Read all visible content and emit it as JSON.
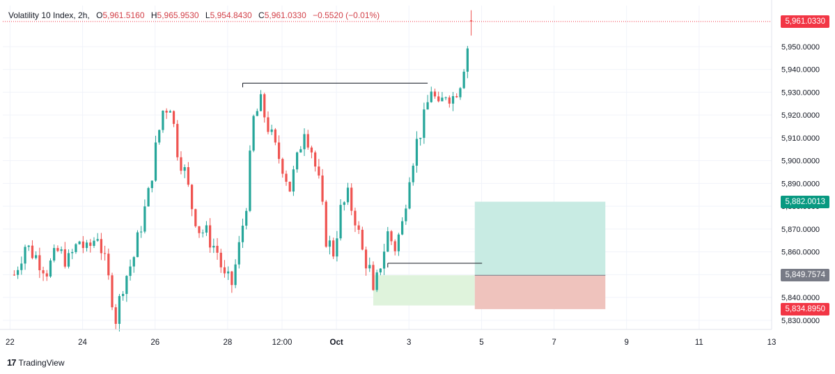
{
  "legend": {
    "symbol": "Volatility 10 Index, 2h,",
    "open_label": "O",
    "open": "5,961.5160",
    "high_label": "H",
    "high": "5,965.9530",
    "low_label": "L",
    "low": "5,954.8430",
    "close_label": "C",
    "close": "5,961.0330",
    "change": "−0.5520 (−0.01%)"
  },
  "brand": {
    "logo": "17",
    "name": "TradingView"
  },
  "price_tags": {
    "last": "5,961.0330",
    "take_profit": "5,882.0013",
    "entry": "5,849.7574",
    "stop_loss": "5,834.8950"
  },
  "colors": {
    "up": "#26a69a",
    "down": "#ef5350",
    "last_tag": "#f23645",
    "tp_tag": "#089981",
    "entry_tag": "#787b86",
    "sl_tag": "#f23645",
    "profit_zone": "#c8ebe3",
    "loss_zone": "#efc3bd",
    "prior_zone": "#dff3dc"
  },
  "chart_data": {
    "type": "candlestick",
    "title": "Volatility 10 Index, 2h",
    "ylim": [
      5826,
      5968
    ],
    "y_ticks": [
      5830,
      5840,
      5850,
      5860,
      5870,
      5880,
      5890,
      5900,
      5910,
      5920,
      5930,
      5940,
      5950
    ],
    "y_tick_labels": [
      "5,830.0000",
      "5,840.0000",
      "5,850.0000",
      "5,860.0000",
      "5,870.0000",
      "5,880.0000",
      "5,890.0000",
      "5,900.0000",
      "5,910.0000",
      "5,920.0000",
      "5,930.0000",
      "5,940.0000",
      "5,950.0000"
    ],
    "x_unit": "2h bar index",
    "x_range": [
      -2,
      210
    ],
    "x_ticks": [
      {
        "label": "22",
        "bar": 0
      },
      {
        "label": "24",
        "bar": 20
      },
      {
        "label": "26",
        "bar": 40
      },
      {
        "label": "28",
        "bar": 60
      },
      {
        "label": "12:00",
        "bar": 75
      },
      {
        "label": "Oct",
        "bar": 90
      },
      {
        "label": "3",
        "bar": 110
      },
      {
        "label": "5",
        "bar": 130
      },
      {
        "label": "7",
        "bar": 150
      },
      {
        "label": "9",
        "bar": 170
      },
      {
        "label": "11",
        "bar": 190
      },
      {
        "label": "13",
        "bar": 210
      }
    ],
    "close_path": [
      [
        0,
        5850
      ],
      [
        3,
        5863
      ],
      [
        6,
        5858
      ],
      [
        9,
        5852
      ],
      [
        12,
        5860
      ],
      [
        15,
        5856
      ],
      [
        18,
        5865
      ],
      [
        20,
        5860
      ],
      [
        23,
        5868
      ],
      [
        25,
        5855
      ],
      [
        27,
        5840
      ],
      [
        28,
        5831
      ],
      [
        30,
        5846
      ],
      [
        33,
        5858
      ],
      [
        35,
        5872
      ],
      [
        37,
        5885
      ],
      [
        39,
        5905
      ],
      [
        41,
        5922
      ],
      [
        43,
        5925
      ],
      [
        45,
        5905
      ],
      [
        47,
        5895
      ],
      [
        49,
        5880
      ],
      [
        51,
        5870
      ],
      [
        53,
        5868
      ],
      [
        56,
        5860
      ],
      [
        58,
        5848
      ],
      [
        60,
        5846
      ],
      [
        62,
        5862
      ],
      [
        64,
        5882
      ],
      [
        65,
        5900
      ],
      [
        66,
        5918
      ],
      [
        68,
        5925
      ],
      [
        70,
        5915
      ],
      [
        72,
        5905
      ],
      [
        74,
        5898
      ],
      [
        76,
        5888
      ],
      [
        78,
        5900
      ],
      [
        80,
        5915
      ],
      [
        82,
        5905
      ],
      [
        84,
        5890
      ],
      [
        86,
        5866
      ],
      [
        88,
        5860
      ],
      [
        90,
        5878
      ],
      [
        92,
        5884
      ],
      [
        94,
        5875
      ],
      [
        96,
        5860
      ],
      [
        98,
        5852
      ],
      [
        99,
        5840
      ],
      [
        101,
        5855
      ],
      [
        103,
        5868
      ],
      [
        105,
        5862
      ],
      [
        107,
        5872
      ],
      [
        109,
        5895
      ],
      [
        111,
        5908
      ],
      [
        113,
        5918
      ],
      [
        115,
        5932
      ],
      [
        117,
        5922
      ],
      [
        119,
        5930
      ],
      [
        121,
        5928
      ],
      [
        123,
        5935
      ],
      [
        125,
        5950
      ],
      [
        126,
        5961.03
      ]
    ],
    "last_candle": {
      "open": 5961.516,
      "high": 5965.953,
      "low": 5954.843,
      "close": 5961.033
    },
    "annotations": [
      {
        "type": "horizontal_ray",
        "price": 5934,
        "from_bar": 63,
        "to_bar": 114
      },
      {
        "type": "horizontal_ray",
        "price": 5855,
        "from_bar": 103,
        "to_bar": 129
      }
    ],
    "long_position": {
      "from_bar": 127,
      "to_bar": 163,
      "entry": 5849.7574,
      "take_profit": 5882.0013,
      "stop_loss": 5834.895
    },
    "prior_zone": {
      "from_bar": 99,
      "to_bar": 127,
      "top": 5849.7574,
      "bottom": 5836.5
    },
    "grid": true,
    "last_price": 5961.033
  }
}
